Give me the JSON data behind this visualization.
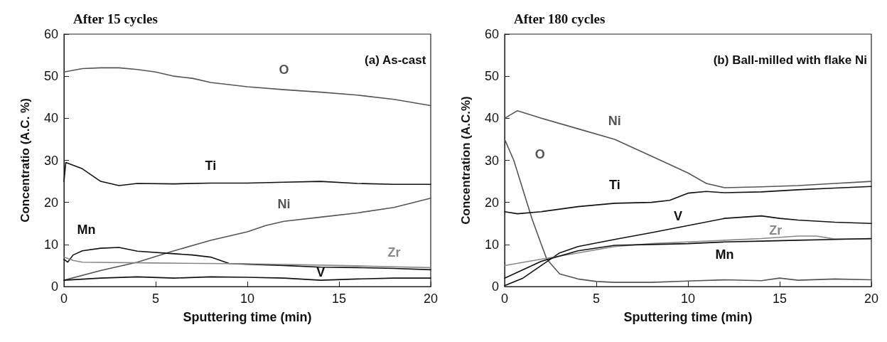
{
  "chart_data": [
    {
      "type": "line",
      "title": "After 15 cycles",
      "xlabel": "Sputtering time (min)",
      "ylabel": "Concentratio (A.C. %)",
      "annotations": [
        "(a) As-cast"
      ],
      "xlim": [
        0,
        20
      ],
      "xticks": [
        0,
        5,
        10,
        15,
        20
      ],
      "ylim": [
        0,
        60
      ],
      "yticks": [
        0,
        10,
        20,
        30,
        40,
        50,
        60
      ],
      "grid": false,
      "legend": false,
      "marker": "none",
      "line_style": "solid",
      "series": [
        {
          "name": "O",
          "color": "#555555",
          "x": [
            0,
            1,
            2,
            3,
            4,
            5,
            6,
            7,
            8,
            10,
            12,
            14,
            16,
            18,
            20
          ],
          "values": [
            51,
            51.8,
            52,
            52,
            51.6,
            51,
            50,
            49.5,
            48.5,
            47.5,
            46.8,
            46.2,
            45.5,
            44.5,
            43
          ]
        },
        {
          "name": "Ti",
          "color": "#111111",
          "x": [
            0,
            0.1,
            1,
            2,
            3,
            4,
            6,
            8,
            10,
            12,
            14,
            16,
            18,
            20
          ],
          "values": [
            25,
            29.5,
            28,
            25,
            24,
            24.5,
            24.4,
            24.6,
            24.6,
            24.8,
            25,
            24.5,
            24.3,
            24.3
          ]
        },
        {
          "name": "Ni",
          "color": "#555555",
          "x": [
            0,
            2,
            4,
            6,
            8,
            10,
            11,
            12,
            14,
            16,
            18,
            20
          ],
          "values": [
            1.5,
            3.8,
            5.8,
            8.5,
            11,
            13,
            14.5,
            15.5,
            16.5,
            17.5,
            18.8,
            21
          ]
        },
        {
          "name": "Mn",
          "color": "#111111",
          "x": [
            0,
            0.2,
            0.5,
            1,
            2,
            3,
            4,
            6,
            7,
            8,
            9,
            10,
            12,
            14,
            16,
            18,
            20
          ],
          "values": [
            6.5,
            5.8,
            7.5,
            8.5,
            9.1,
            9.3,
            8.4,
            7.8,
            7.5,
            7,
            5.5,
            5.3,
            5,
            4.6,
            4.5,
            4.3,
            4
          ]
        },
        {
          "name": "Zr",
          "color": "#888888",
          "x": [
            0,
            0.5,
            1,
            5,
            10,
            15,
            18,
            20
          ],
          "values": [
            7,
            6.2,
            5.8,
            5.6,
            5.4,
            5,
            4.7,
            4.5
          ]
        },
        {
          "name": "V",
          "color": "#111111",
          "x": [
            0,
            2,
            4,
            6,
            8,
            10,
            12,
            14,
            16,
            18,
            20
          ],
          "values": [
            1.5,
            2,
            2.3,
            2,
            2.3,
            2.2,
            2,
            1.5,
            1.8,
            2,
            2
          ]
        }
      ]
    },
    {
      "type": "line",
      "title": "After 180 cycles",
      "xlabel": "Sputtering time (min)",
      "ylabel": "Concentration (A.C.%)",
      "annotations": [
        "(b) Ball-milled with flake Ni"
      ],
      "xlim": [
        0,
        20
      ],
      "xticks": [
        0,
        5,
        10,
        15,
        20
      ],
      "ylim": [
        0,
        60
      ],
      "yticks": [
        0,
        10,
        20,
        30,
        40,
        50,
        60
      ],
      "grid": false,
      "legend": false,
      "marker": "none",
      "line_style": "solid",
      "series": [
        {
          "name": "Ni",
          "color": "#555555",
          "x": [
            0,
            0.7,
            2,
            4,
            6,
            8,
            10,
            11,
            12,
            14,
            16,
            18,
            20
          ],
          "values": [
            40,
            41.8,
            40,
            37.5,
            35,
            31,
            27,
            24.5,
            23.5,
            23.7,
            24,
            24.5,
            25
          ]
        },
        {
          "name": "O",
          "color": "#555555",
          "x": [
            0,
            0.5,
            1,
            1.5,
            2,
            2.3,
            3,
            4,
            5,
            6,
            8,
            10,
            12,
            14,
            15,
            16,
            18,
            20
          ],
          "values": [
            35,
            30,
            23,
            16,
            10,
            6.5,
            3,
            1.8,
            1.2,
            1,
            1,
            1.3,
            1.6,
            1.4,
            2,
            1.5,
            1.8,
            1.6
          ]
        },
        {
          "name": "Ti",
          "color": "#111111",
          "x": [
            0,
            0.7,
            2,
            4,
            6,
            8,
            9,
            10,
            11,
            12,
            14,
            16,
            18,
            20
          ],
          "values": [
            17.8,
            17.3,
            17.8,
            19,
            19.8,
            20,
            20.5,
            22.2,
            22.6,
            22.3,
            22.5,
            23,
            23.4,
            23.8
          ]
        },
        {
          "name": "V",
          "color": "#111111",
          "x": [
            0,
            1,
            2,
            3,
            4,
            6,
            8,
            10,
            12,
            14,
            15,
            16,
            18,
            20
          ],
          "values": [
            0.2,
            2,
            5,
            8,
            9.5,
            11.2,
            12.8,
            14.5,
            16.2,
            16.8,
            16.2,
            15.8,
            15.3,
            15
          ]
        },
        {
          "name": "Zr",
          "color": "#888888",
          "x": [
            0,
            2,
            4,
            6,
            8,
            10,
            12,
            14,
            16,
            17,
            18,
            20
          ],
          "values": [
            5,
            6.5,
            8,
            9.5,
            10.2,
            10.6,
            11,
            11.4,
            12,
            12,
            11.3,
            11.3
          ]
        },
        {
          "name": "Mn",
          "color": "#111111",
          "x": [
            0,
            2,
            4,
            6,
            8,
            10,
            12,
            14,
            16,
            18,
            20
          ],
          "values": [
            2,
            6,
            8.5,
            9.8,
            10,
            10.2,
            10.6,
            10.8,
            11,
            11.2,
            11.4
          ]
        }
      ]
    }
  ]
}
